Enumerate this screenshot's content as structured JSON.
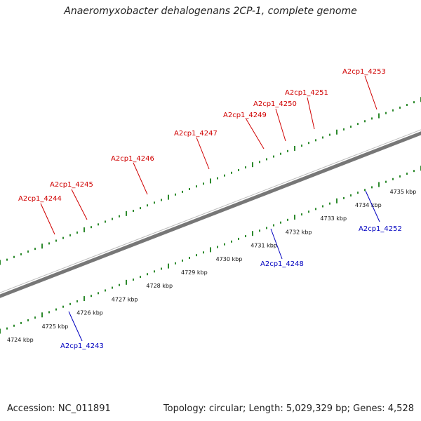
{
  "title": "Anaeromyxobacter dehalogenans 2CP-1, complete genome",
  "footer": {
    "accession": "Accession: NC_011891",
    "summary": "Topology: circular; Length: 5,029,329 bp; Genes: 4,528"
  },
  "colors": {
    "forward_label": "#d00000",
    "reverse_label": "#0000c0",
    "cds": "#ff1010",
    "reverse_marker": "#1a22ee",
    "backbone": "#7a7a7a",
    "tick": "#2d8a2d"
  },
  "scale_labels": [
    "4724 kbp",
    "4725 kbp",
    "4726 kbp",
    "4727 kbp",
    "4728 kbp",
    "4729 kbp",
    "4730 kbp",
    "4731 kbp",
    "4732 kbp",
    "4733 kbp",
    "4734 kbp",
    "4735 kbp"
  ],
  "forward_genes": [
    {
      "label": "A2cp1_4244",
      "category_color": "#c8c8c8"
    },
    {
      "label": "A2cp1_4245",
      "category_color": "#6f8f2a"
    },
    {
      "label": "A2cp1_4246",
      "category_color": "#ee2288"
    },
    {
      "label": "A2cp1_4247",
      "category_color": "#4a86c0"
    },
    {
      "label": "A2cp1_4249",
      "category_color": "#00e5ee"
    },
    {
      "label": "A2cp1_4250",
      "category_color": "#4a3d8c"
    },
    {
      "label": "A2cp1_4251",
      "category_color": "#4a86c0"
    },
    {
      "label": "A2cp1_4253",
      "category_color": "#4a86c0"
    }
  ],
  "reverse_genes": [
    {
      "label": "A2cp1_4243"
    },
    {
      "label": "A2cp1_4248"
    },
    {
      "label": "A2cp1_4252"
    }
  ]
}
